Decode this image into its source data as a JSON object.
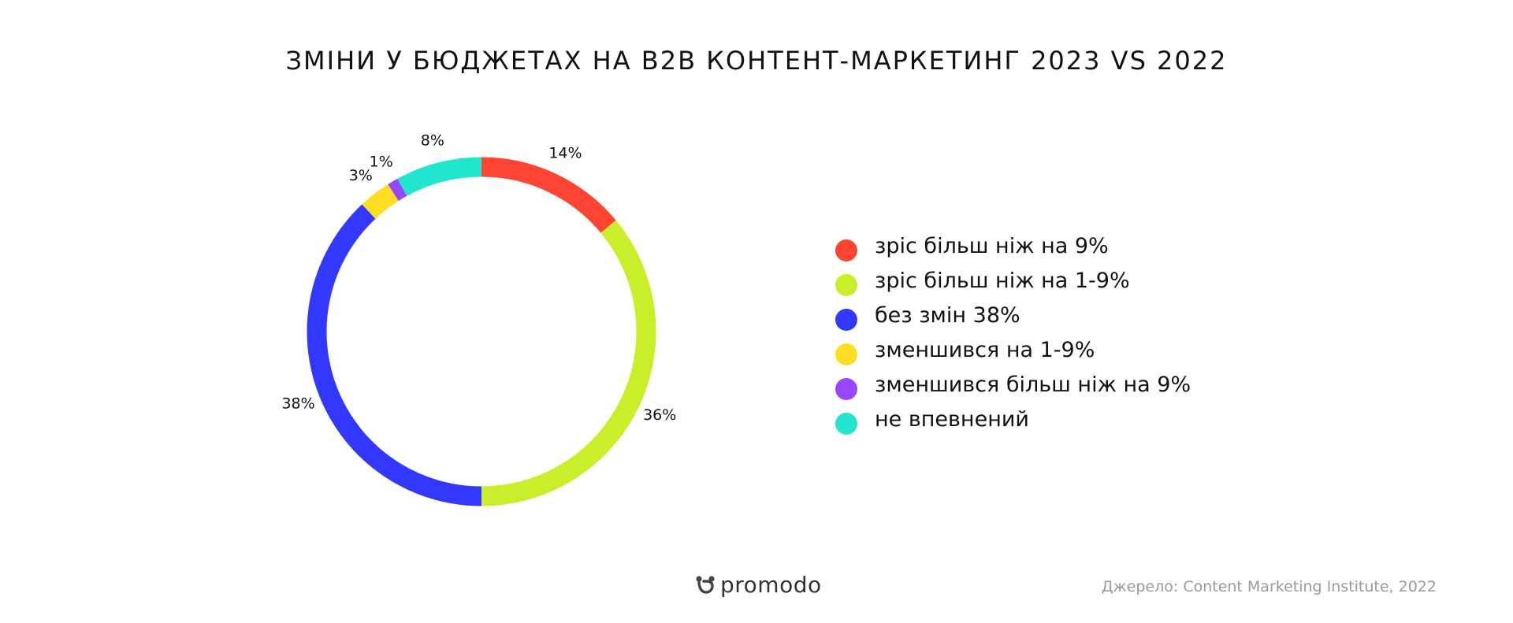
{
  "title": "ЗМІНИ У БЮДЖЕТАХ НА B2B КОНТЕНТ-МАРКЕТИНГ 2023 VS 2022",
  "chart_data": {
    "type": "pie",
    "title": "ЗМІНИ У БЮДЖЕТАХ НА B2B КОНТЕНТ-МАРКЕТИНГ 2023 VS 2022",
    "donut": true,
    "legend_position": "right",
    "slices": [
      {
        "label": "зріс більш ніж на 9%",
        "value": 14,
        "data_label": "14%",
        "color": "#FF4433"
      },
      {
        "label": "зріс більш ніж на 1-9%",
        "value": 36,
        "data_label": "36%",
        "color": "#CBEE2A"
      },
      {
        "label": "без змін 38%",
        "value": 38,
        "data_label": "38%",
        "color": "#3338FF"
      },
      {
        "label": "зменшився на 1-9%",
        "value": 3,
        "data_label": "3%",
        "color": "#FFDD22"
      },
      {
        "label": "зменшився більш ніж на 9%",
        "value": 1,
        "data_label": "1%",
        "color": "#9747FF"
      },
      {
        "label": "не впевнений",
        "value": 8,
        "data_label": "8%",
        "color": "#22E5D0"
      }
    ]
  },
  "brand": {
    "name": "promodo",
    "icon": "promodo-logo-icon"
  },
  "source": "Джерело: Content Marketing Institute, 2022"
}
